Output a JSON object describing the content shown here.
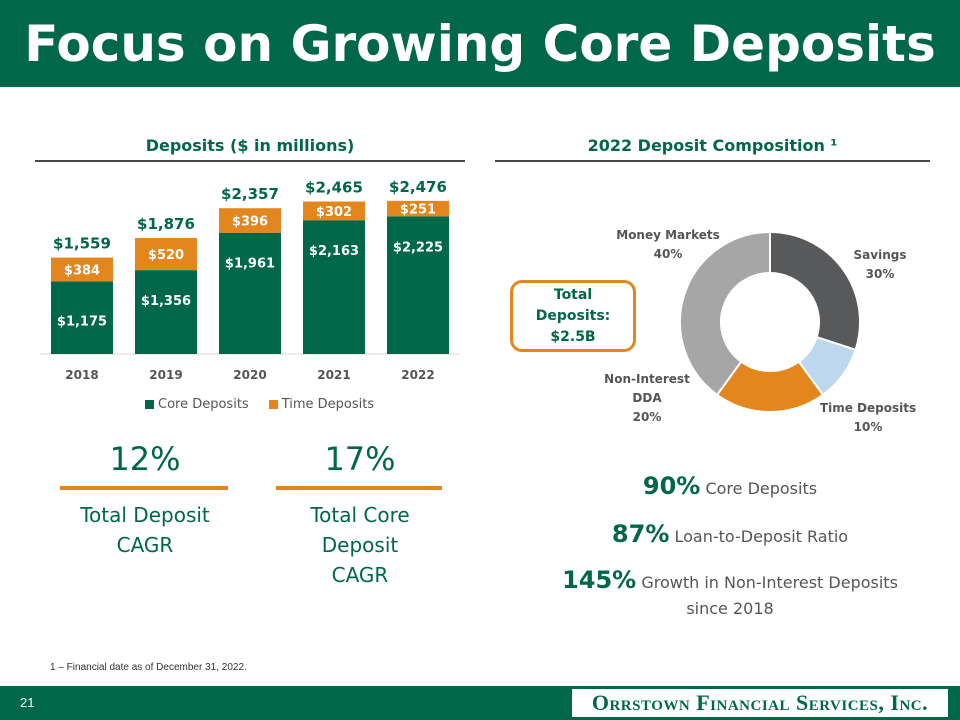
{
  "title": "Focus on Growing Core Deposits",
  "left_section": {
    "heading": "Deposits ($ in millions)"
  },
  "right_section": {
    "heading": "2022 Deposit Composition ¹"
  },
  "colors": {
    "green": "#006848",
    "orange": "#e3861e",
    "money_markets": "#a6a6a6",
    "savings": "#58595b",
    "time_deposits": "#bdd7ee",
    "non_interest": "#e3861e"
  },
  "chart_data": [
    {
      "type": "bar",
      "stacked": true,
      "title": "Deposits ($ in millions)",
      "categories": [
        "2018",
        "2019",
        "2020",
        "2021",
        "2022"
      ],
      "series": [
        {
          "name": "Core Deposits",
          "values": [
            1175,
            1356,
            1961,
            2163,
            2225
          ],
          "labels": [
            "$1,175",
            "$1,356",
            "$1,961",
            "$2,163",
            "$2,225"
          ],
          "color": "#006848"
        },
        {
          "name": "Time Deposits",
          "values": [
            384,
            520,
            396,
            302,
            251
          ],
          "labels": [
            "$384",
            "$520",
            "$396",
            "$302",
            "$251"
          ],
          "color": "#e3861e"
        }
      ],
      "totals": [
        1559,
        1876,
        2357,
        2465,
        2476
      ],
      "total_labels": [
        "$1,559",
        "$1,876",
        "$2,357",
        "$2,465",
        "$2,476"
      ],
      "ylim": [
        0,
        2700
      ],
      "legend": "bottom"
    },
    {
      "type": "pie",
      "donut": true,
      "title": "2022 Deposit Composition",
      "slices": [
        {
          "label": "Savings",
          "value": 30,
          "pct_label": "30%",
          "color": "#58595b"
        },
        {
          "label": "Time Deposits",
          "value": 10,
          "pct_label": "10%",
          "color": "#bdd7ee"
        },
        {
          "label": "Non-Interest DDA",
          "value": 20,
          "pct_label": "20%",
          "color": "#e3861e"
        },
        {
          "label": "Money Markets",
          "value": 40,
          "pct_label": "40%",
          "color": "#a6a6a6"
        }
      ]
    }
  ],
  "kpis": [
    {
      "value": "12%",
      "label_lines": [
        "Total Deposit",
        "CAGR"
      ]
    },
    {
      "value": "17%",
      "label_lines": [
        "Total Core",
        "Deposit",
        "CAGR"
      ]
    }
  ],
  "callout": {
    "line1": "Total",
    "line2": "Deposits:",
    "line3": "$2.5B"
  },
  "stats": [
    {
      "value": "90%",
      "text": "Core Deposits"
    },
    {
      "value": "87%",
      "text": "Loan-to-Deposit Ratio"
    },
    {
      "value": "145%",
      "text": "Growth in Non-Interest Deposits",
      "text2": "since 2018"
    }
  ],
  "footnote": "1 – Financial date as of December 31, 2022.",
  "footer": {
    "page": "21",
    "logo": "Orrstown Financial Services, Inc."
  }
}
